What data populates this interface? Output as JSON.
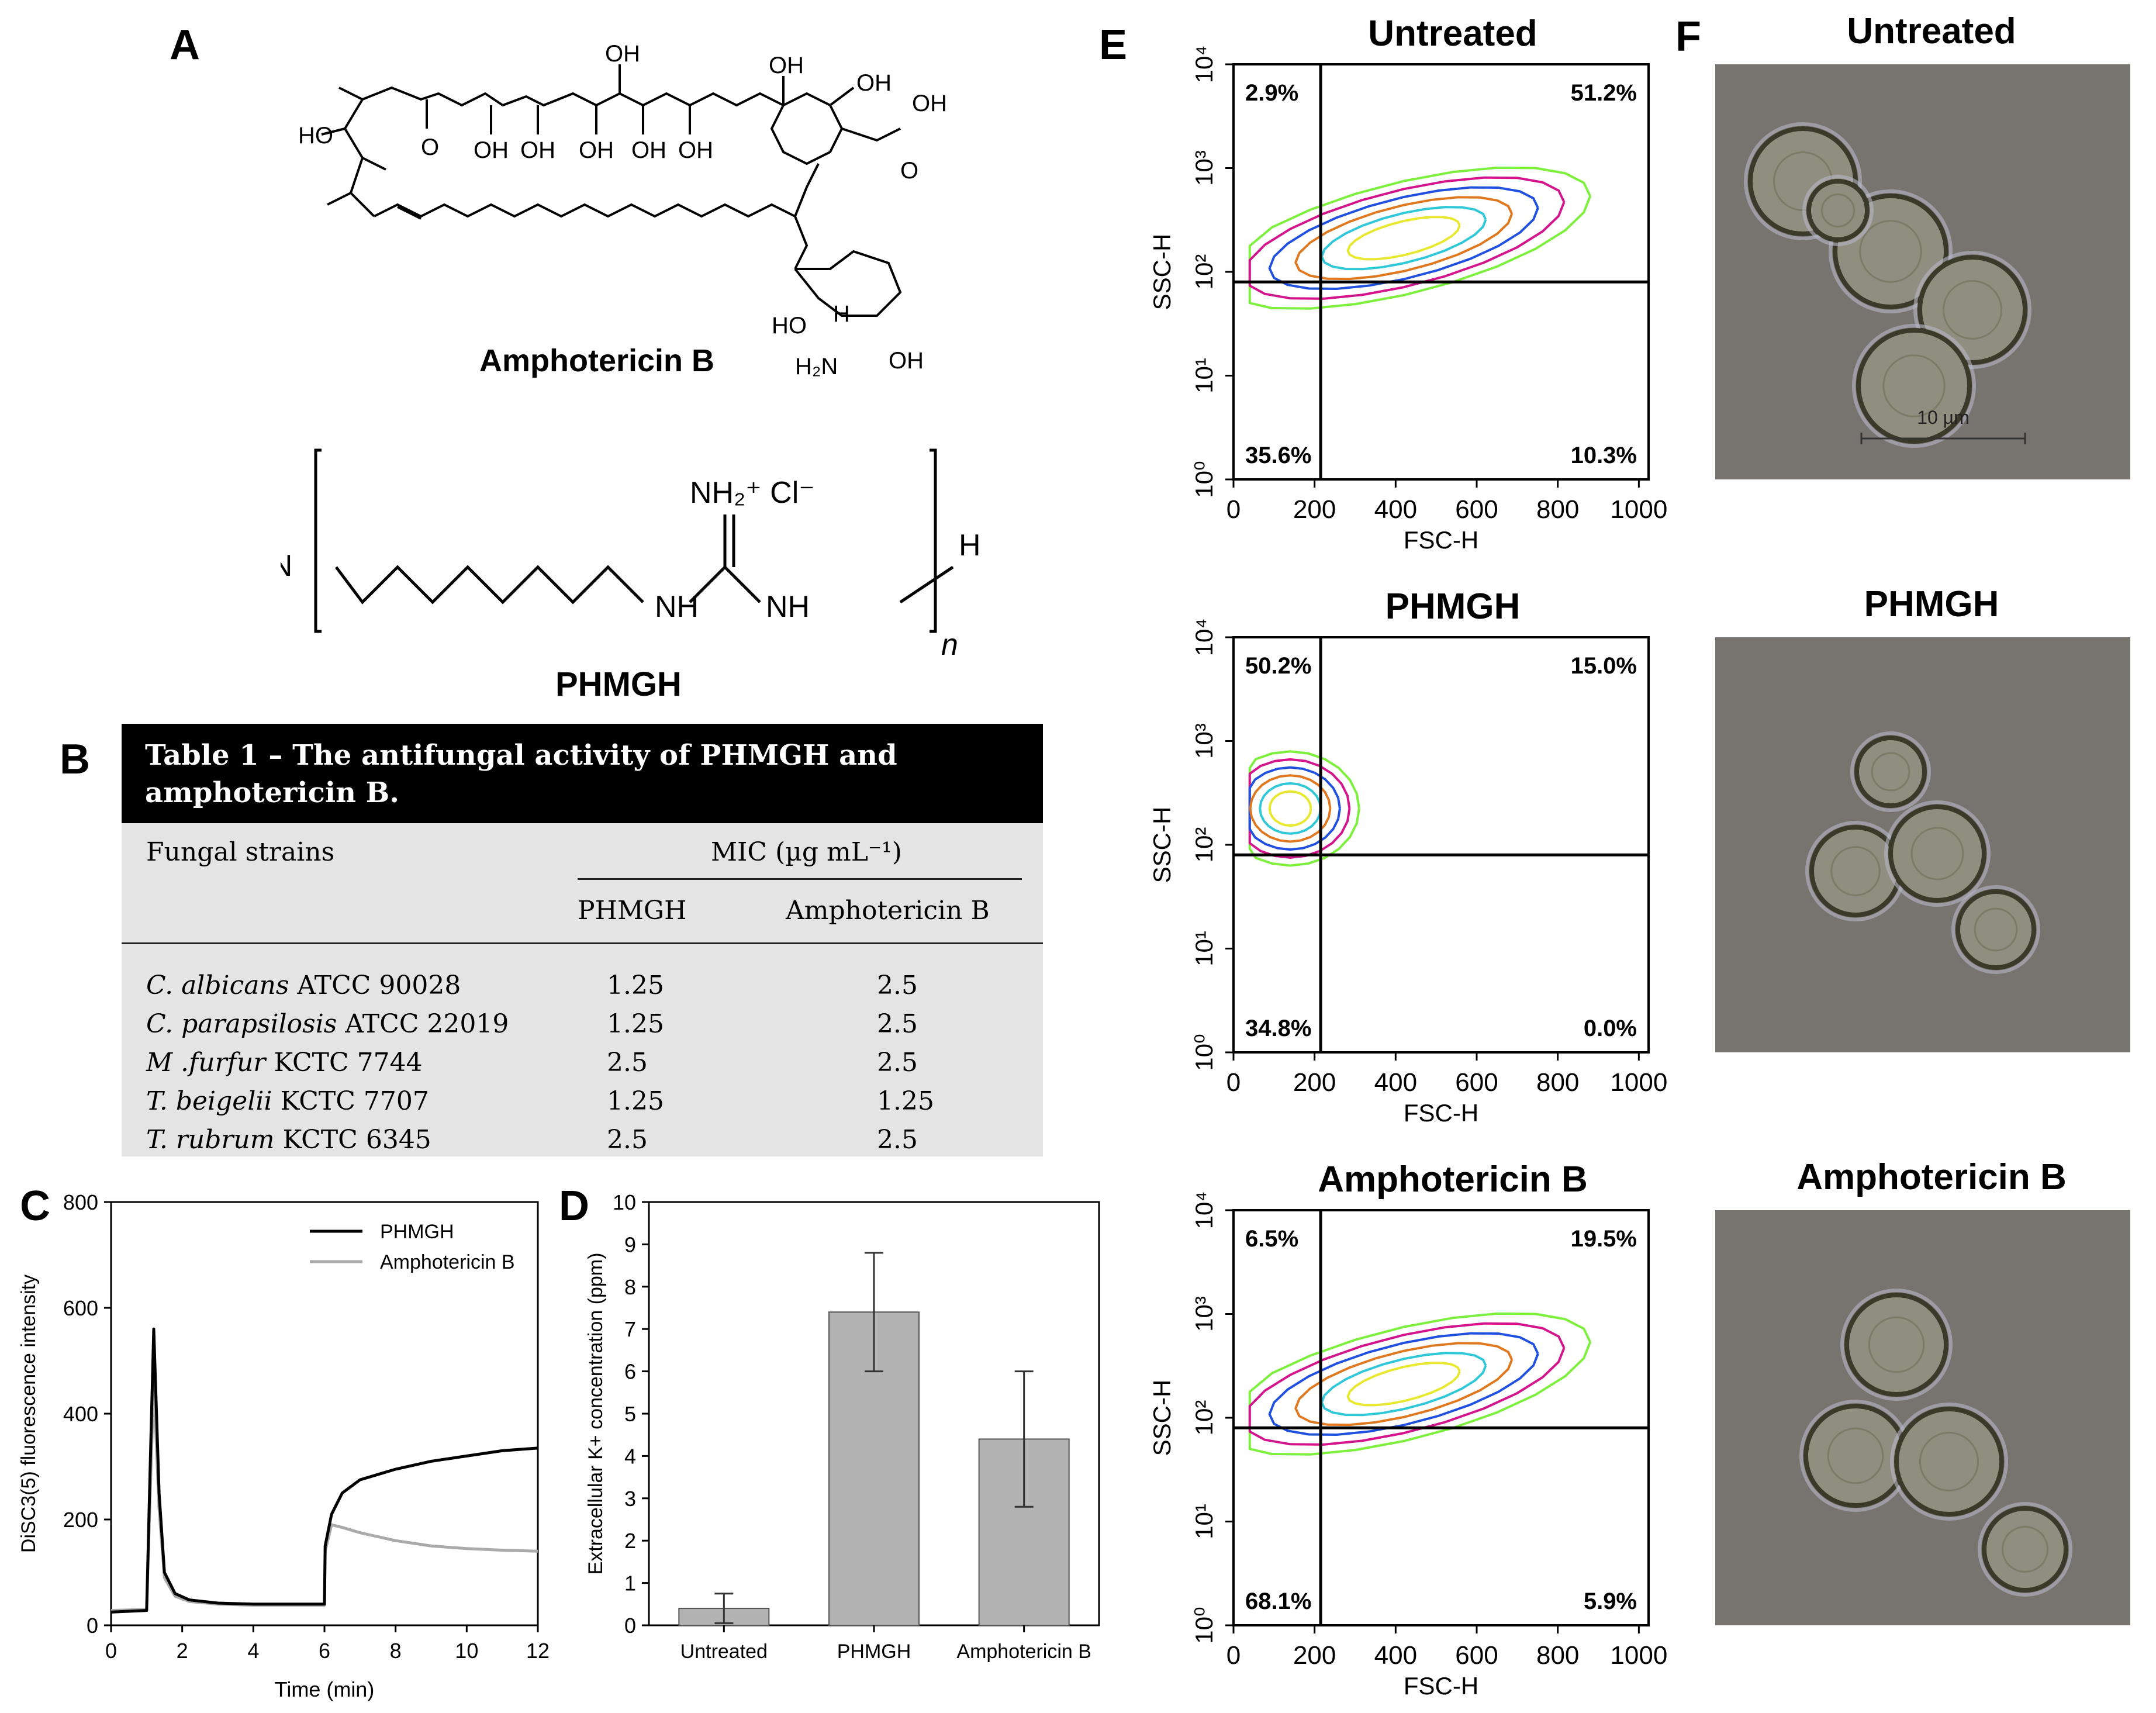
{
  "panels": {
    "A": "A",
    "B": "B",
    "C": "C",
    "D": "D",
    "E": "E",
    "F": "F"
  },
  "panel_a": {
    "compound1": "Amphotericin B",
    "compound2": "PHMGH",
    "atoms": {
      "oh": "OH",
      "ho": "HO",
      "o": "O",
      "h": "H",
      "nh2": "H₂N",
      "nh": "NH",
      "cl": "NH₂⁺ Cl⁻",
      "n": "n"
    }
  },
  "table": {
    "title": "Table 1 – The antifungal activity of PHMGH and amphotericin B.",
    "col_strain": "Fungal strains",
    "col_mic": "MIC (µg mL⁻¹)",
    "col_phmgh": "PHMGH",
    "col_amb": "Amphotericin B",
    "rows": [
      {
        "species": "C. albicans",
        "strain": "ATCC 90028",
        "phmgh": "1.25",
        "amb": "2.5"
      },
      {
        "species": "C. parapsilosis",
        "strain": "ATCC 22019",
        "phmgh": "1.25",
        "amb": "2.5"
      },
      {
        "species": "M .furfur",
        "strain": "KCTC 7744",
        "phmgh": "2.5",
        "amb": "2.5"
      },
      {
        "species": "T. beigelii",
        "strain": "KCTC 7707",
        "phmgh": "1.25",
        "amb": "1.25"
      },
      {
        "species": "T. rubrum",
        "strain": "KCTC 6345",
        "phmgh": "2.5",
        "amb": "2.5"
      }
    ]
  },
  "chart_data": [
    {
      "panel": "C",
      "type": "line",
      "xlabel": "Time (min)",
      "ylabel": "DiSC3(5) fluorescence intensity",
      "xlim": [
        0,
        12
      ],
      "ylim": [
        0,
        800
      ],
      "xticks": [
        0,
        2,
        4,
        6,
        8,
        10,
        12
      ],
      "yticks": [
        0,
        200,
        400,
        600,
        800
      ],
      "legend_position": "top-right",
      "series": [
        {
          "name": "PHMGH",
          "color": "#000000",
          "x": [
            0,
            1.0,
            1.1,
            1.2,
            1.35,
            1.5,
            1.8,
            2.2,
            3,
            4,
            5,
            6,
            6.02,
            6.2,
            6.5,
            7,
            7.5,
            8,
            9,
            10,
            11,
            12
          ],
          "y": [
            25,
            28,
            300,
            560,
            250,
            100,
            60,
            48,
            42,
            40,
            40,
            40,
            150,
            210,
            250,
            275,
            285,
            295,
            310,
            320,
            330,
            335
          ]
        },
        {
          "name": "Amphotericin B",
          "color": "#aaaaaa",
          "x": [
            0,
            1.0,
            1.1,
            1.2,
            1.35,
            1.5,
            1.8,
            2.2,
            3,
            4,
            5,
            6,
            6.02,
            6.2,
            6.5,
            7,
            8,
            9,
            10,
            11,
            12
          ],
          "y": [
            28,
            30,
            250,
            460,
            220,
            90,
            55,
            45,
            40,
            38,
            38,
            38,
            140,
            190,
            185,
            175,
            160,
            150,
            145,
            142,
            140
          ]
        }
      ]
    },
    {
      "panel": "D",
      "type": "bar",
      "xlabel": "",
      "ylabel": "Extracellular K+ concentration (ppm)",
      "ylim": [
        0,
        10
      ],
      "yticks": [
        0,
        1,
        2,
        3,
        4,
        5,
        6,
        7,
        8,
        9,
        10
      ],
      "categories": [
        "Untreated",
        "PHMGH",
        "Amphotericin B"
      ],
      "values": [
        0.4,
        7.4,
        4.4
      ],
      "errors": [
        0.35,
        1.4,
        1.6
      ],
      "color": "#b3b3b3"
    },
    {
      "panel": "E",
      "type": "scatter",
      "title": "Untreated",
      "xlabel": "FSC-H",
      "ylabel": "SSC-H",
      "xlim": [
        0,
        1024
      ],
      "ylim": [
        1,
        10000
      ],
      "yscale": "log",
      "quadrant_gate": {
        "x": 215,
        "y": 80
      },
      "quadrants": {
        "upper_left": "2.9%",
        "upper_right": "51.2%",
        "lower_left": "35.6%",
        "lower_right": "10.3%"
      }
    },
    {
      "panel": "E",
      "type": "scatter",
      "title": "PHMGH",
      "xlabel": "FSC-H",
      "ylabel": "SSC-H",
      "xlim": [
        0,
        1024
      ],
      "ylim": [
        1,
        10000
      ],
      "yscale": "log",
      "quadrant_gate": {
        "x": 215,
        "y": 80
      },
      "quadrants": {
        "upper_left": "50.2%",
        "upper_right": "15.0%",
        "lower_left": "34.8%",
        "lower_right": "0.0%"
      }
    },
    {
      "panel": "E",
      "type": "scatter",
      "title": "Amphotericin B",
      "xlabel": "FSC-H",
      "ylabel": "SSC-H",
      "xlim": [
        0,
        1024
      ],
      "ylim": [
        1,
        10000
      ],
      "yscale": "log",
      "quadrant_gate": {
        "x": 215,
        "y": 80
      },
      "quadrants": {
        "upper_left": "6.5%",
        "upper_right": "19.5%",
        "lower_left": "68.1%",
        "lower_right": "5.9%"
      }
    }
  ],
  "flow": {
    "xticks": [
      "0",
      "200",
      "400",
      "600",
      "800",
      "1000"
    ],
    "yticks": [
      "10⁰",
      "10¹",
      "10²",
      "10³",
      "10⁴"
    ],
    "contour_colors": [
      "#7cf03c",
      "#d4148c",
      "#2050e0",
      "#e07820",
      "#30c8d8",
      "#e8e830"
    ]
  },
  "micro": {
    "titles": [
      "Untreated",
      "PHMGH",
      "Amphotericin B"
    ],
    "scale_label": "10 µm"
  }
}
